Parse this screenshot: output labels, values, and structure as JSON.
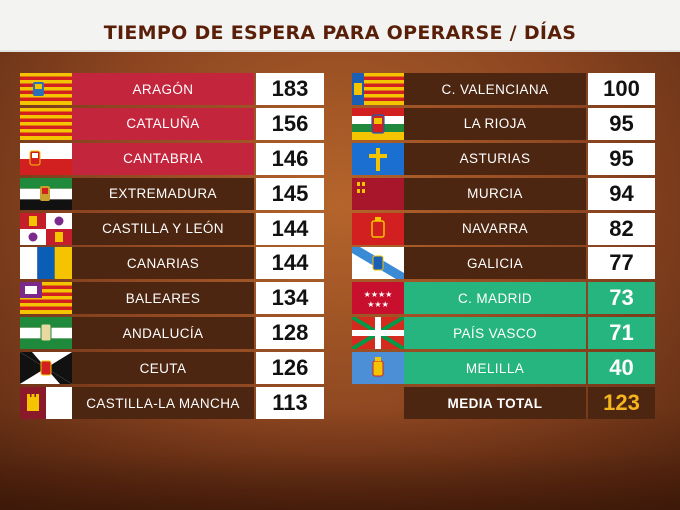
{
  "title": "TIEMPO DE ESPERA PARA OPERARSE / DÍAS",
  "left": [
    {
      "label": "ARAGÓN",
      "value": "183",
      "style": "red",
      "flag": "aragon-flag-icon"
    },
    {
      "label": "CATALUÑA",
      "value": "156",
      "style": "red",
      "flag": "cataluna-flag-icon"
    },
    {
      "label": "CANTABRIA",
      "value": "146",
      "style": "red",
      "flag": "cantabria-flag-icon"
    },
    {
      "label": "EXTREMADURA",
      "value": "145",
      "style": "brown",
      "flag": "extremadura-flag-icon"
    },
    {
      "label": "CASTILLA Y LEÓN",
      "value": "144",
      "style": "brown",
      "flag": "castilla-y-leon-flag-icon"
    },
    {
      "label": "CANARIAS",
      "value": "144",
      "style": "brown",
      "flag": "canarias-flag-icon"
    },
    {
      "label": "BALEARES",
      "value": "134",
      "style": "brown",
      "flag": "baleares-flag-icon"
    },
    {
      "label": "ANDALUCÍA",
      "value": "128",
      "style": "brown",
      "flag": "andalucia-flag-icon"
    },
    {
      "label": "CEUTA",
      "value": "126",
      "style": "brown",
      "flag": "ceuta-flag-icon"
    },
    {
      "label": "CASTILLA-LA MANCHA",
      "value": "113",
      "style": "brown",
      "flag": "castilla-la-mancha-flag-icon"
    }
  ],
  "right": [
    {
      "label": "C. VALENCIANA",
      "value": "100",
      "style": "brown",
      "flag": "valenciana-flag-icon"
    },
    {
      "label": "LA RIOJA",
      "value": "95",
      "style": "brown",
      "flag": "la-rioja-flag-icon"
    },
    {
      "label": "ASTURIAS",
      "value": "95",
      "style": "brown",
      "flag": "asturias-flag-icon"
    },
    {
      "label": "MURCIA",
      "value": "94",
      "style": "brown",
      "flag": "murcia-flag-icon"
    },
    {
      "label": "NAVARRA",
      "value": "82",
      "style": "brown",
      "flag": "navarra-flag-icon"
    },
    {
      "label": "GALICIA",
      "value": "77",
      "style": "brown",
      "flag": "galicia-flag-icon"
    },
    {
      "label": "C. MADRID",
      "value": "73",
      "style": "green",
      "flag": "madrid-flag-icon"
    },
    {
      "label": "PAÍS VASCO",
      "value": "71",
      "style": "green",
      "flag": "pais-vasco-flag-icon"
    },
    {
      "label": "MELILLA",
      "value": "40",
      "style": "green",
      "flag": "melilla-flag-icon"
    }
  ],
  "media": {
    "label": "MEDIA TOTAL",
    "value": "123"
  },
  "colors": {
    "red": "#c3253c",
    "brown": "#4d2612",
    "green": "#27b57f",
    "media_value": "#f5b51c",
    "title": "#5a1f08"
  }
}
